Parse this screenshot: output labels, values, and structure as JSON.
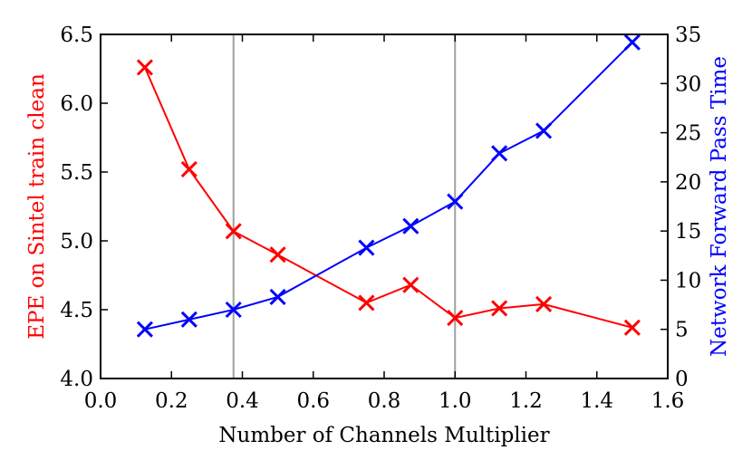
{
  "chart_data": {
    "type": "line",
    "title": "",
    "xlabel": "Number of Channels Multiplier",
    "ylabel_left": "EPE on Sintel train clean",
    "ylabel_right": "Network Forward Pass Time",
    "xlim": [
      0.0,
      1.6
    ],
    "ylim_left": [
      4.0,
      6.5
    ],
    "ylim_right": [
      0,
      35
    ],
    "x_ticks": [
      "0.0",
      "0.2",
      "0.4",
      "0.6",
      "0.8",
      "1.0",
      "1.2",
      "1.4",
      "1.6"
    ],
    "y_ticks_left": [
      "4.0",
      "4.5",
      "5.0",
      "5.5",
      "6.0",
      "6.5"
    ],
    "y_ticks_right": [
      "0",
      "5",
      "10",
      "15",
      "20",
      "25",
      "30",
      "35"
    ],
    "vertical_lines": [
      0.375,
      1.0
    ],
    "grid": false,
    "marker": "x",
    "series": [
      {
        "axis": "left",
        "color": "#ff0000",
        "x": [
          0.125,
          0.25,
          0.375,
          0.5,
          0.75,
          0.875,
          1.0,
          1.125,
          1.25,
          1.5
        ],
        "y": [
          6.26,
          5.52,
          5.07,
          4.9,
          4.55,
          4.68,
          4.44,
          4.51,
          4.54,
          4.37
        ]
      },
      {
        "axis": "right",
        "color": "#0000ff",
        "x": [
          0.125,
          0.25,
          0.375,
          0.5,
          0.75,
          0.875,
          1.0,
          1.125,
          1.25,
          1.5
        ],
        "y": [
          5.0,
          6.0,
          7.0,
          8.3,
          13.3,
          15.5,
          18.0,
          22.9,
          25.2,
          34.2
        ]
      }
    ]
  }
}
